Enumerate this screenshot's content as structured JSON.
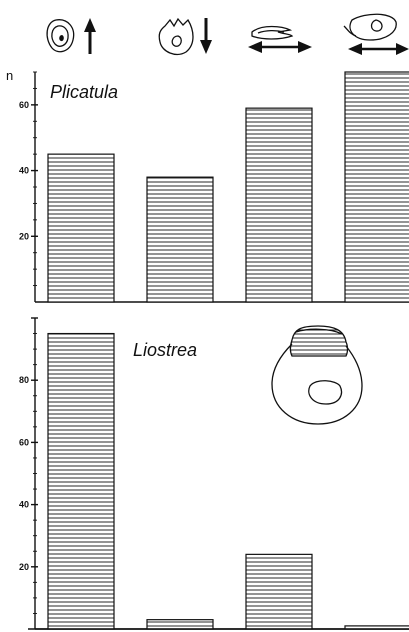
{
  "chart_data": [
    {
      "type": "bar",
      "title": "Plicatula",
      "ylabel": "n",
      "ylim": [
        0,
        70
      ],
      "yticks": [
        20,
        40,
        60
      ],
      "categories": [
        "",
        "",
        "",
        ""
      ],
      "category_icons": [
        "shell-with-up-arrow-icon",
        "shell-with-down-arrow-icon",
        "flat-shell-with-horizontal-arrow-icon",
        "shell-with-horizontal-arrow-icon"
      ],
      "values": [
        45,
        38,
        59,
        70
      ],
      "grid": false
    },
    {
      "type": "bar",
      "title": "Liostrea",
      "ylim": [
        0,
        100
      ],
      "yticks": [
        20,
        40,
        60,
        80
      ],
      "categories": [
        "",
        "",
        "",
        ""
      ],
      "values": [
        95,
        3,
        24,
        1
      ],
      "grid": false
    }
  ],
  "colors": {
    "ink": "#111111",
    "paper": "#ffffff"
  }
}
